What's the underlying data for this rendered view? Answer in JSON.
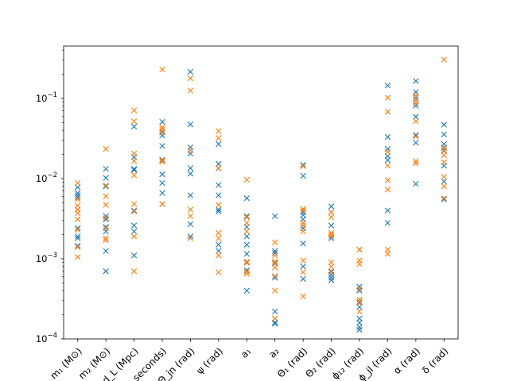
{
  "chart_data": {
    "type": "scatter",
    "title": "",
    "xlabel": "",
    "ylabel": "",
    "yscale": "log",
    "ylim": [
      0.0001,
      0.45
    ],
    "grid": false,
    "legend": "none",
    "marker": "x",
    "categories": [
      "m₁ (M⊙)",
      "m₂ (M⊙)",
      "d_L (Mpc)",
      "seconds)",
      "Θ_jn (rad)",
      "ψ (rad)",
      "a₁",
      "a₂",
      "Θ₁ (rad)",
      "Θ₂ (rad)",
      "ϕ₁₂ (rad)",
      "ϕ_jl (rad)",
      "α (rad)",
      "δ (rad)"
    ],
    "yticks": [
      {
        "value": 0.0001,
        "base": "10",
        "exp": "−4"
      },
      {
        "value": 0.001,
        "base": "10",
        "exp": "−3"
      },
      {
        "value": 0.01,
        "base": "10",
        "exp": "−2"
      },
      {
        "value": 0.1,
        "base": "10",
        "exp": "−1"
      }
    ],
    "series": [
      {
        "color": "#1f77b4",
        "values": [
          [
            0.0078,
            0.0066,
            0.0062,
            0.0058,
            0.0041,
            0.0024,
            0.0019,
            0.0018,
            0.00145
          ],
          [
            0.0132,
            0.0102,
            0.008,
            0.0034,
            0.0031,
            0.0025,
            0.0022,
            0.00125,
            0.0007
          ],
          [
            0.0445,
            0.0185,
            0.0132,
            0.0128,
            0.004,
            0.0026,
            0.0022,
            0.0011
          ],
          [
            0.051,
            0.0385,
            0.0345,
            0.0255,
            0.0172,
            0.0113,
            0.0088,
            0.0066,
            0.0048
          ],
          [
            0.215,
            0.0475,
            0.0245,
            0.0205,
            0.0135,
            0.0115,
            0.0062,
            0.0027,
            0.0019
          ],
          [
            0.027,
            0.0152,
            0.0134,
            0.0083,
            0.0062,
            0.0041,
            0.0039,
            0.0015,
            0.00125
          ],
          [
            0.0057,
            0.0034,
            0.0025,
            0.0019,
            0.0015,
            0.00115,
            0.00089,
            0.00072,
            0.0004
          ],
          [
            0.0034,
            0.00125,
            0.00118,
            0.00087,
            0.00058,
            0.00022,
            0.00018,
            0.00016,
            0.000155
          ],
          [
            0.0148,
            0.0108,
            0.0038,
            0.0035,
            0.0031,
            0.0024,
            0.00155,
            0.0008,
            0.00056
          ],
          [
            0.0045,
            0.0038,
            0.0026,
            0.0019,
            0.0018,
            0.0007,
            0.00063,
            0.00058,
            0.00054
          ],
          [
            0.00045,
            0.0004,
            0.00029,
            0.00025,
            0.00018,
            0.00016,
            0.00014,
            0.00013
          ],
          [
            0.145,
            0.033,
            0.0235,
            0.019,
            0.017,
            0.004,
            0.0028
          ],
          [
            0.165,
            0.12,
            0.102,
            0.087,
            0.081,
            0.059,
            0.035,
            0.028,
            0.0086
          ],
          [
            0.047,
            0.0355,
            0.027,
            0.0245,
            0.0225,
            0.0145,
            0.0092,
            0.0055
          ]
        ]
      },
      {
        "color": "#ff7f0e",
        "values": [
          [
            0.0088,
            0.0055,
            0.0046,
            0.0041,
            0.0037,
            0.0031,
            0.0023,
            0.0014,
            0.00105
          ],
          [
            0.0235,
            0.0082,
            0.006,
            0.0047,
            0.0032,
            0.0024,
            0.0018,
            0.0017
          ],
          [
            0.071,
            0.052,
            0.0205,
            0.0165,
            0.011,
            0.0048,
            0.0039,
            0.0019,
            0.0007
          ],
          [
            0.23,
            0.0435,
            0.041,
            0.0375,
            0.0168,
            0.0162,
            0.0048
          ],
          [
            0.178,
            0.125,
            0.0225,
            0.0041,
            0.0034,
            0.0018
          ],
          [
            0.039,
            0.032,
            0.0135,
            0.0047,
            0.0021,
            0.0018,
            0.0011,
            0.00068
          ],
          [
            0.0097,
            0.0033,
            0.0028,
            0.0022,
            0.00092,
            0.0009,
            0.00069,
            0.00065
          ],
          [
            0.0016,
            0.0011,
            0.00092,
            0.00089,
            0.00078,
            0.00061,
            0.0004,
            0.00018
          ],
          [
            0.0143,
            0.0042,
            0.004,
            0.0028,
            0.0026,
            0.0022,
            0.00095,
            0.00068,
            0.00034
          ],
          [
            0.0038,
            0.0033,
            0.0021,
            0.002,
            0.0019,
            0.0009,
            0.0008,
            0.00068
          ],
          [
            0.0013,
            0.0013,
            0.00095,
            0.00086,
            0.00042,
            0.00031,
            0.00028,
            0.00022
          ],
          [
            0.102,
            0.068,
            0.0215,
            0.0145,
            0.0095,
            0.0073,
            0.0013,
            0.00115
          ],
          [
            0.11,
            0.095,
            0.087,
            0.052,
            0.0335,
            0.0165,
            0.0155
          ],
          [
            0.305,
            0.024,
            0.022,
            0.0195,
            0.016,
            0.0105,
            0.008,
            0.0057
          ]
        ]
      }
    ]
  }
}
